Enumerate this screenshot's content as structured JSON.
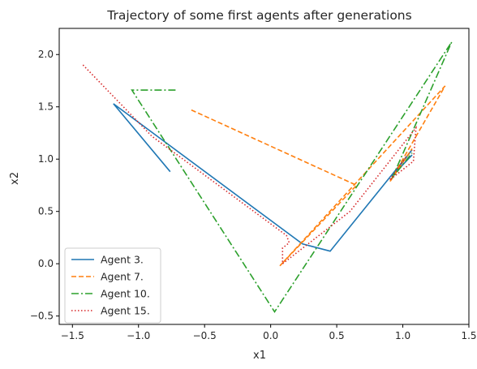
{
  "chart_data": {
    "type": "line",
    "title": "Trajectory of some first agents after generations",
    "xlabel": "x1",
    "ylabel": "x2",
    "xlim": [
      -1.6,
      1.5
    ],
    "ylim": [
      -0.58,
      2.25
    ],
    "xticks": [
      -1.5,
      -1.0,
      -0.5,
      0.0,
      0.5,
      1.0,
      1.5
    ],
    "xtick_labels": [
      "−1.5",
      "−1.0",
      "−0.5",
      "0.0",
      "0.5",
      "1.0",
      "1.5"
    ],
    "yticks": [
      -0.5,
      0.0,
      0.5,
      1.0,
      1.5,
      2.0
    ],
    "ytick_labels": [
      "−0.5",
      "0.0",
      "0.5",
      "1.0",
      "1.5",
      "2.0"
    ],
    "grid": false,
    "legend_position": "lower-left",
    "series": [
      {
        "name": "Agent 3.",
        "color": "#1f77b4",
        "dash": "solid",
        "x": [
          -0.76,
          -1.19,
          0.24,
          0.45,
          1.07,
          0.92,
          1.07
        ],
        "y": [
          0.88,
          1.53,
          0.19,
          0.12,
          1.09,
          0.84,
          1.04
        ]
      },
      {
        "name": "Agent 7.",
        "color": "#ff7f0e",
        "dash": "dashed",
        "x": [
          -0.6,
          0.65,
          0.07,
          1.32,
          0.9,
          1.07
        ],
        "y": [
          1.47,
          0.75,
          -0.02,
          1.7,
          0.78,
          1.1
        ]
      },
      {
        "name": "Agent 10.",
        "color": "#2ca02c",
        "dash": "dashdot",
        "x": [
          -0.72,
          -1.05,
          0.03,
          1.37,
          0.92,
          1.07
        ],
        "y": [
          1.66,
          1.66,
          -0.46,
          2.12,
          0.82,
          1.06
        ]
      },
      {
        "name": "Agent 15.",
        "color": "#d62728",
        "dash": "dotted",
        "x": [
          -1.42,
          -0.9,
          0.12,
          0.14,
          0.09,
          0.09,
          0.6,
          1.1,
          1.08,
          0.9,
          1.03
        ],
        "y": [
          1.9,
          1.22,
          0.27,
          0.2,
          0.15,
          0.0,
          0.5,
          1.3,
          0.98,
          0.8,
          1.03
        ]
      }
    ]
  }
}
